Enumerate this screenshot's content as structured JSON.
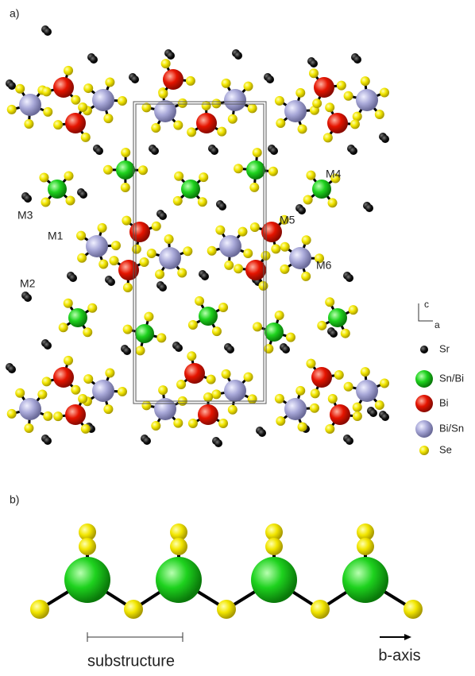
{
  "panel_a": {
    "label": "a)",
    "sites": [
      "M1",
      "M2",
      "M3",
      "M4",
      "M5",
      "M6"
    ],
    "axes": {
      "vertical": "c",
      "horizontal": "a"
    },
    "legend": [
      "Sr",
      "Sn/Bi",
      "Bi",
      "Bi/Sn",
      "Se"
    ]
  },
  "panel_b": {
    "label": "b)",
    "scale_label": "substructure",
    "axis_label": "b-axis"
  }
}
